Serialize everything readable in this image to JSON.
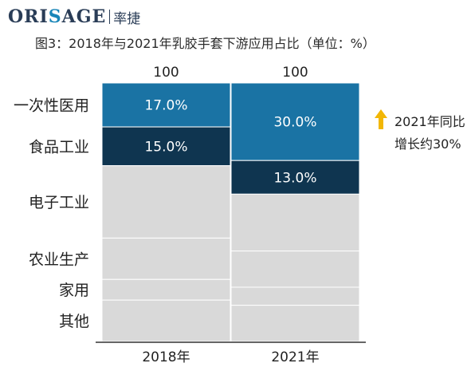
{
  "logo": {
    "prefix": "ORI",
    "accent": "S",
    "rest": "AGE",
    "cn": "率捷"
  },
  "title": "图3：2018年与2021年乳胶手套下游应用占比（单位：%）",
  "annotation": {
    "line1": "2021年同比",
    "line2": "增长约30%",
    "arrow_color": "#f2b705"
  },
  "colors": {
    "medical": "#1a73a4",
    "food": "#0f3550",
    "other": "#d9d9d9",
    "seg_border": "#ffffff",
    "axis": "#333333"
  },
  "chart_data": {
    "type": "bar",
    "stacked": true,
    "categories": [
      "2018年",
      "2021年"
    ],
    "totals": [
      100,
      100
    ],
    "segment_labels": [
      "一次性医用",
      "食品工业",
      "电子工业",
      "农业生产",
      "家用",
      "其他"
    ],
    "series": [
      {
        "name": "一次性医用",
        "values": [
          17,
          30
        ],
        "labels": [
          "17.0%",
          "30.0%"
        ]
      },
      {
        "name": "食品工业",
        "values": [
          15,
          13
        ],
        "labels": [
          "15.0%",
          "13.0%"
        ]
      },
      {
        "name": "电子工业",
        "values": [
          28,
          22
        ],
        "labels": [
          "",
          ""
        ]
      },
      {
        "name": "农业生产",
        "values": [
          16,
          14
        ],
        "labels": [
          "",
          ""
        ]
      },
      {
        "name": "家用",
        "values": [
          8,
          7
        ],
        "labels": [
          "",
          ""
        ]
      },
      {
        "name": "其他",
        "values": [
          16,
          14
        ],
        "labels": [
          "",
          ""
        ]
      }
    ],
    "ylim": [
      0,
      100
    ]
  }
}
